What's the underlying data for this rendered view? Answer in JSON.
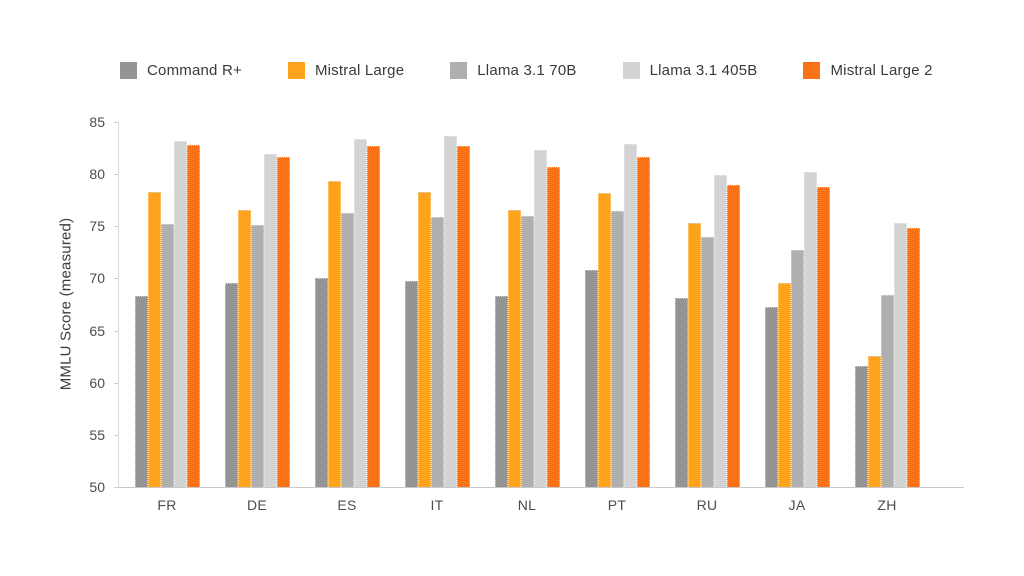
{
  "chart_data": {
    "type": "bar",
    "title": "",
    "xlabel": "",
    "ylabel": "MMLU Score (measured)",
    "ylim": [
      50,
      85
    ],
    "yticks": [
      50,
      55,
      60,
      65,
      70,
      75,
      80,
      85
    ],
    "grid": false,
    "legend_position": "top",
    "categories": [
      "FR",
      "DE",
      "ES",
      "IT",
      "NL",
      "PT",
      "RU",
      "JA",
      "ZH"
    ],
    "series": [
      {
        "name": "Command R+",
        "color": "#949494",
        "values": [
          68.3,
          69.6,
          70.0,
          69.8,
          68.3,
          70.8,
          68.1,
          67.3,
          61.6
        ]
      },
      {
        "name": "Mistral Large",
        "color": "#FFA31D",
        "values": [
          78.3,
          76.6,
          79.3,
          78.3,
          76.6,
          78.2,
          75.3,
          69.6,
          62.6
        ]
      },
      {
        "name": "Llama 3.1 70B",
        "color": "#AFAFAF",
        "values": [
          75.2,
          75.1,
          76.3,
          75.9,
          76.0,
          76.5,
          74.0,
          72.7,
          68.4
        ]
      },
      {
        "name": "Llama 3.1 405B",
        "color": "#D3D3D3",
        "values": [
          83.2,
          81.9,
          83.4,
          83.7,
          82.3,
          82.9,
          79.9,
          80.2,
          75.3
        ]
      },
      {
        "name": "Mistral Large 2",
        "color": "#F97316",
        "values": [
          82.8,
          81.6,
          82.7,
          82.7,
          80.7,
          81.6,
          79.0,
          78.8,
          74.8
        ]
      }
    ]
  },
  "axis_colors": {
    "axis_line": "#c7c7c7",
    "tick_mark": "#cfcfcf",
    "tick_text": "#4d4d4d",
    "label_text": "#3a3a3a"
  }
}
